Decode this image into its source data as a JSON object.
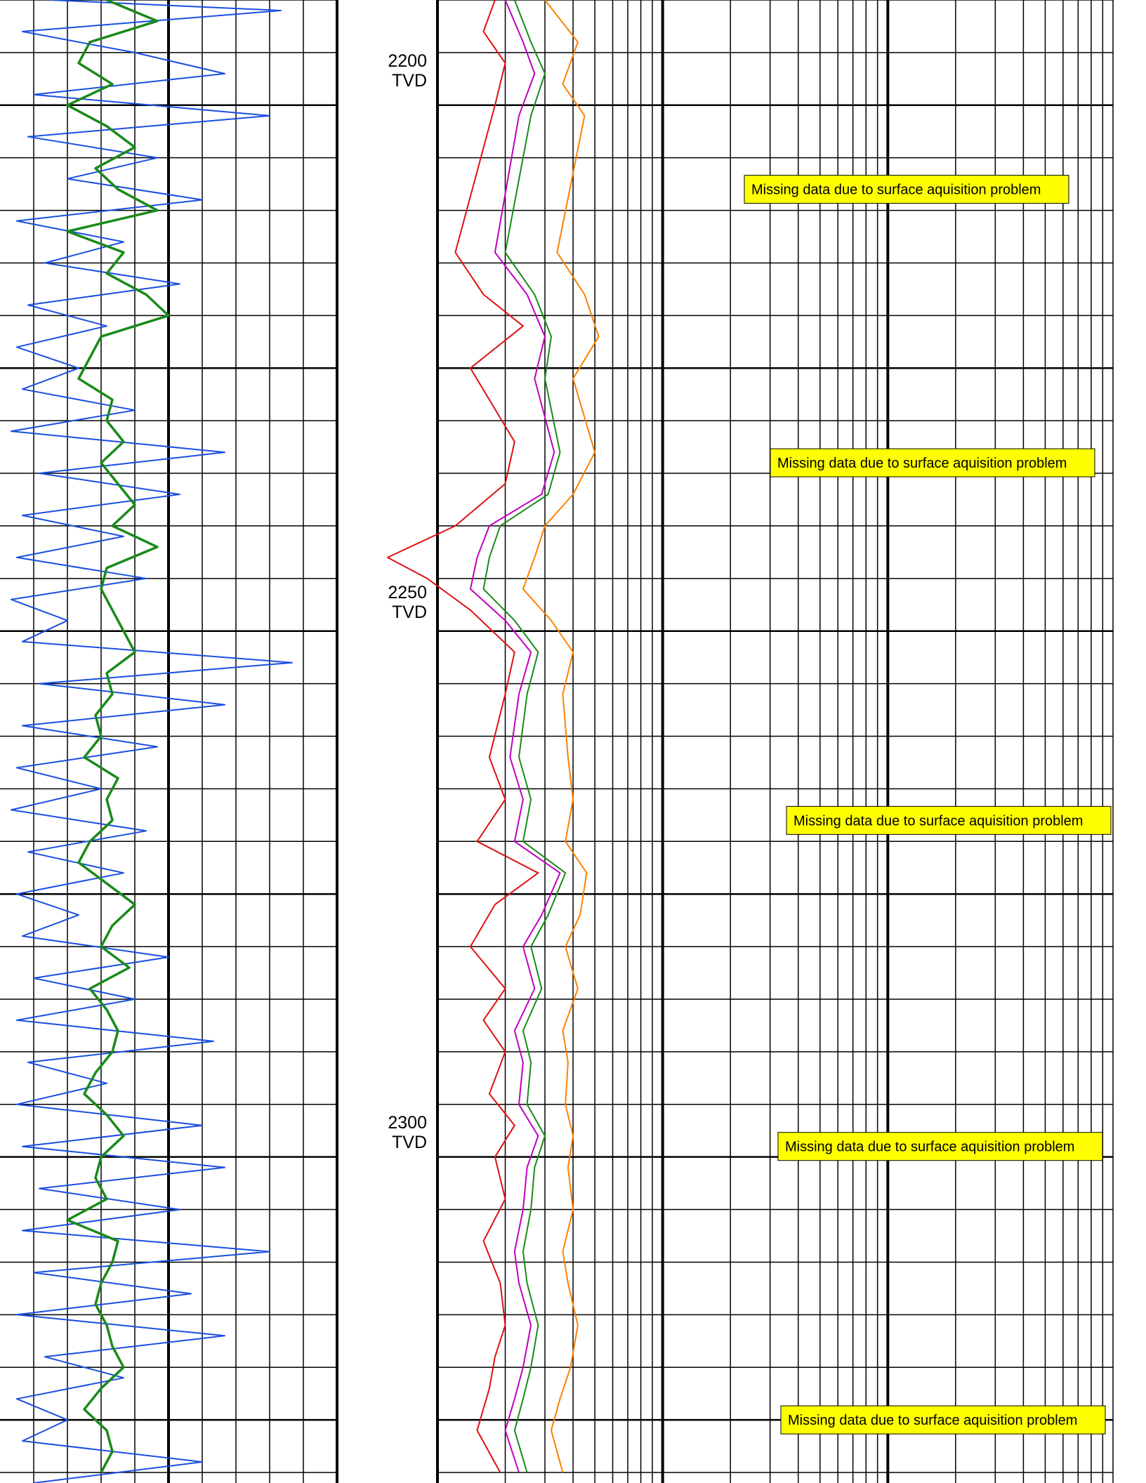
{
  "chart_data": {
    "type": "line",
    "depth_axis": {
      "label": "TVD",
      "range": [
        2190,
        2331
      ],
      "ticks": [
        2200,
        2250,
        2300
      ]
    },
    "tracks": [
      {
        "series": [
          {
            "color": "#1a4fe0",
            "depth": [
              2190,
              2191,
              2193,
              2195,
              2197,
              2199,
              2201,
              2203,
              2205,
              2207,
              2209,
              2211,
              2213,
              2215,
              2217,
              2219,
              2221,
              2223,
              2225,
              2227,
              2229,
              2231,
              2233,
              2235,
              2237,
              2239,
              2241,
              2243,
              2245,
              2247,
              2249,
              2251,
              2253,
              2255,
              2257,
              2259,
              2261,
              2263,
              2265,
              2267,
              2269,
              2271,
              2273,
              2275,
              2277,
              2279,
              2281,
              2283,
              2285,
              2287,
              2289,
              2291,
              2293,
              2295,
              2297,
              2299,
              2301,
              2303,
              2305,
              2307,
              2309,
              2311,
              2313,
              2315,
              2317,
              2319,
              2321,
              2323,
              2325,
              2327,
              2329,
              2331
            ],
            "value": [
              45,
              250,
              20,
              120,
              200,
              30,
              240,
              25,
              140,
              60,
              180,
              15,
              110,
              40,
              160,
              25,
              95,
              15,
              70,
              20,
              120,
              10,
              200,
              35,
              160,
              20,
              110,
              15,
              130,
              10,
              60,
              20,
              260,
              35,
              200,
              20,
              140,
              15,
              90,
              10,
              130,
              25,
              110,
              15,
              70,
              20,
              150,
              30,
              120,
              15,
              190,
              25,
              95,
              15,
              180,
              20,
              200,
              35,
              160,
              20,
              240,
              30,
              170,
              15,
              200,
              40,
              110,
              15,
              60,
              20,
              180,
              30
            ]
          },
          {
            "color": "#1a8a1a",
            "depth": [
              2190,
              2192,
              2194,
              2196,
              2198,
              2200,
              2202,
              2204,
              2206,
              2208,
              2210,
              2212,
              2214,
              2216,
              2218,
              2220,
              2222,
              2224,
              2226,
              2228,
              2230,
              2232,
              2234,
              2236,
              2238,
              2240,
              2242,
              2244,
              2246,
              2248,
              2250,
              2252,
              2254,
              2256,
              2258,
              2260,
              2262,
              2264,
              2266,
              2268,
              2270,
              2272,
              2274,
              2276,
              2278,
              2280,
              2282,
              2284,
              2286,
              2288,
              2290,
              2292,
              2294,
              2296,
              2298,
              2300,
              2302,
              2304,
              2306,
              2308,
              2310,
              2312,
              2314,
              2316,
              2318,
              2320,
              2322,
              2324,
              2326,
              2328,
              2330
            ],
            "value": [
              95,
              140,
              80,
              70,
              100,
              60,
              95,
              120,
              85,
              105,
              140,
              60,
              110,
              95,
              130,
              150,
              90,
              80,
              70,
              100,
              95,
              110,
              90,
              105,
              120,
              100,
              140,
              95,
              90,
              100,
              110,
              120,
              95,
              100,
              85,
              90,
              75,
              105,
              95,
              100,
              80,
              70,
              95,
              120,
              100,
              90,
              115,
              80,
              95,
              105,
              100,
              85,
              75,
              95,
              110,
              90,
              85,
              95,
              60,
              105,
              100,
              90,
              85,
              95,
              100,
              110,
              90,
              75,
              95,
              100,
              90
            ]
          }
        ]
      },
      {
        "series": [
          {
            "color": "#e01010",
            "depth": [
              2190,
              2193,
              2196,
              2200,
              2214,
              2218,
              2221,
              2225,
              2232,
              2236,
              2240,
              2243,
              2245,
              2248,
              2252,
              2256,
              2262,
              2266,
              2270,
              2273,
              2276,
              2280,
              2284,
              2287,
              2290,
              2294,
              2297,
              2300,
              2304,
              2308,
              2312,
              2316,
              2319,
              2322,
              2326,
              2330
            ],
            "value": [
              0.18,
              0.16,
              0.2,
              0.18,
              0.12,
              0.16,
              0.24,
              0.14,
              0.22,
              0.2,
              0.12,
              0.06,
              0.09,
              0.14,
              0.22,
              0.2,
              0.17,
              0.2,
              0.15,
              0.28,
              0.18,
              0.14,
              0.2,
              0.16,
              0.2,
              0.17,
              0.22,
              0.18,
              0.2,
              0.16,
              0.19,
              0.2,
              0.18,
              0.17,
              0.15,
              0.19
            ]
          },
          {
            "color": "#c000c0",
            "depth": [
              2190,
              2194,
              2197,
              2201,
              2214,
              2218,
              2222,
              2226,
              2233,
              2237,
              2240,
              2243,
              2246,
              2249,
              2252,
              2256,
              2262,
              2266,
              2270,
              2273,
              2277,
              2280,
              2284,
              2288,
              2291,
              2295,
              2298,
              2301,
              2305,
              2309,
              2312,
              2316,
              2320,
              2323,
              2326,
              2330
            ],
            "value": [
              0.2,
              0.24,
              0.27,
              0.23,
              0.18,
              0.25,
              0.3,
              0.27,
              0.33,
              0.29,
              0.17,
              0.15,
              0.14,
              0.2,
              0.26,
              0.23,
              0.21,
              0.24,
              0.22,
              0.35,
              0.29,
              0.24,
              0.27,
              0.22,
              0.24,
              0.23,
              0.28,
              0.25,
              0.24,
              0.22,
              0.23,
              0.26,
              0.24,
              0.22,
              0.2,
              0.23
            ]
          },
          {
            "color": "#1a8a1a",
            "depth": [
              2190,
              2194,
              2197,
              2201,
              2214,
              2218,
              2222,
              2226,
              2233,
              2237,
              2240,
              2243,
              2246,
              2249,
              2252,
              2256,
              2262,
              2266,
              2270,
              2273,
              2277,
              2280,
              2284,
              2288,
              2291,
              2295,
              2298,
              2301,
              2305,
              2309,
              2312,
              2316,
              2320,
              2323,
              2326,
              2330
            ],
            "value": [
              0.22,
              0.26,
              0.3,
              0.26,
              0.2,
              0.27,
              0.32,
              0.3,
              0.35,
              0.31,
              0.19,
              0.17,
              0.16,
              0.22,
              0.28,
              0.25,
              0.23,
              0.26,
              0.24,
              0.37,
              0.31,
              0.26,
              0.29,
              0.24,
              0.26,
              0.25,
              0.3,
              0.27,
              0.26,
              0.24,
              0.25,
              0.28,
              0.26,
              0.24,
              0.22,
              0.25
            ]
          },
          {
            "color": "#ff8000",
            "depth": [
              2190,
              2194,
              2198,
              2201,
              2214,
              2218,
              2222,
              2226,
              2233,
              2237,
              2240,
              2243,
              2246,
              2249,
              2252,
              2256,
              2262,
              2266,
              2270,
              2273,
              2277,
              2280,
              2284,
              2288,
              2291,
              2295,
              2298,
              2301,
              2305,
              2309,
              2312,
              2316,
              2320,
              2323,
              2326,
              2330
            ],
            "value": [
              0.3,
              0.42,
              0.36,
              0.45,
              0.34,
              0.45,
              0.52,
              0.4,
              0.5,
              0.4,
              0.3,
              0.27,
              0.24,
              0.32,
              0.4,
              0.36,
              0.38,
              0.4,
              0.37,
              0.46,
              0.43,
              0.37,
              0.42,
              0.36,
              0.38,
              0.37,
              0.4,
              0.38,
              0.4,
              0.36,
              0.38,
              0.42,
              0.39,
              0.35,
              0.32,
              0.36
            ]
          }
        ]
      }
    ],
    "annotations": [
      {
        "text": "Missing data due to surface aquisition problem",
        "depth": 2208
      },
      {
        "text": "Missing data due to surface aquisition problem",
        "depth": 2234
      },
      {
        "text": "Missing data due to surface aquisition problem",
        "depth": 2268
      },
      {
        "text": "Missing data due to surface aquisition problem",
        "depth": 2299
      },
      {
        "text": "Missing data due to surface aquisition problem",
        "depth": 2325
      }
    ]
  },
  "depth_labels": [
    {
      "value": "2200",
      "unit": "TVD"
    },
    {
      "value": "2250",
      "unit": "TVD"
    },
    {
      "value": "2300",
      "unit": "TVD"
    }
  ],
  "colors": {
    "grid": "#000000",
    "note_fill": "#ffff00"
  }
}
